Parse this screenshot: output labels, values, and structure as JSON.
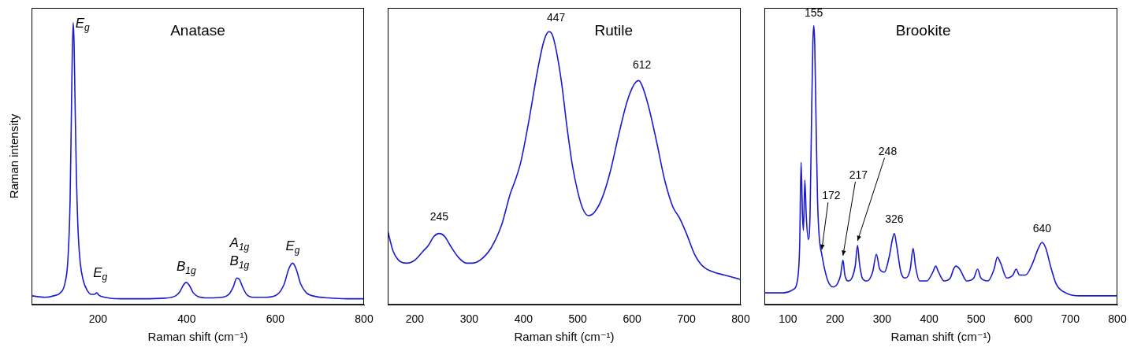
{
  "chart_data": [
    {
      "type": "line",
      "title": "Anatase",
      "x_label": "Raman shift (cm⁻¹)",
      "y_label": "Raman intensity",
      "color": "#1a1ad0",
      "grid": false,
      "tick_labels": "x",
      "xlim": [
        50,
        800
      ],
      "xticks": [
        200,
        400,
        600,
        800
      ],
      "ylim": [
        0,
        100
      ],
      "x": [
        50,
        80,
        100,
        115,
        125,
        132,
        137,
        140,
        142,
        144,
        146,
        148,
        151,
        155,
        160,
        167,
        175,
        185,
        192,
        197,
        202,
        215,
        250,
        300,
        350,
        375,
        385,
        392,
        399,
        406,
        415,
        425,
        450,
        480,
        495,
        505,
        513,
        519,
        526,
        535,
        550,
        580,
        605,
        620,
        630,
        639,
        647,
        657,
        670,
        690,
        720,
        760,
        800
      ],
      "values": [
        3,
        2.5,
        3,
        4,
        7,
        15,
        35,
        65,
        85,
        95,
        88,
        70,
        45,
        25,
        14,
        8,
        5,
        3.5,
        3.5,
        4,
        3.2,
        2.5,
        2,
        2,
        2.2,
        3,
        4.5,
        6.5,
        7.5,
        6.5,
        4,
        2.8,
        2.3,
        2.5,
        3.5,
        6,
        9,
        8.5,
        6,
        3.5,
        2.5,
        2.5,
        3.5,
        7,
        12,
        14,
        12,
        7,
        4,
        2.8,
        2.3,
        2,
        2
      ],
      "annotations": [
        {
          "text": "Eg",
          "x": 165,
          "y": 92
        },
        {
          "text": "Eg",
          "x": 205,
          "y": 8
        },
        {
          "text": "B1g",
          "x": 399,
          "y": 10
        },
        {
          "text": "A1g",
          "x": 519,
          "y": 18
        },
        {
          "text": "B1g",
          "x": 519,
          "y": 12
        },
        {
          "text": "Eg",
          "x": 639,
          "y": 17
        }
      ]
    },
    {
      "type": "line",
      "title": "Rutile",
      "x_label": "Raman shift (cm⁻¹)",
      "color": "#1a1ad0",
      "grid": false,
      "tick_labels": "x",
      "xlim": [
        150,
        800
      ],
      "xticks": [
        200,
        300,
        400,
        500,
        600,
        700,
        800
      ],
      "ylim": [
        0,
        100
      ],
      "x": [
        150,
        160,
        170,
        185,
        200,
        215,
        225,
        235,
        245,
        255,
        265,
        280,
        295,
        305,
        320,
        340,
        360,
        375,
        385,
        395,
        410,
        425,
        435,
        442,
        447,
        453,
        460,
        470,
        480,
        490,
        500,
        510,
        520,
        530,
        545,
        560,
        575,
        590,
        600,
        607,
        612,
        618,
        630,
        645,
        660,
        675,
        688,
        700,
        715,
        730,
        750,
        770,
        800
      ],
      "values": [
        25,
        18,
        15,
        14,
        15,
        18,
        20,
        23,
        24,
        23,
        20,
        16,
        14,
        14,
        15,
        19,
        27,
        37,
        42,
        48,
        62,
        78,
        87,
        91,
        92,
        91,
        86,
        75,
        60,
        47,
        38,
        32,
        30,
        31,
        36,
        45,
        57,
        68,
        73,
        75,
        75.5,
        74,
        67,
        55,
        42,
        33,
        29,
        24,
        17,
        13,
        11,
        10,
        8.5
      ],
      "annotations": [
        {
          "text": "245",
          "x": 245,
          "y": 28
        },
        {
          "text": "447",
          "x": 460,
          "y": 95
        },
        {
          "text": "612",
          "x": 618,
          "y": 79
        }
      ]
    },
    {
      "type": "line",
      "title": "Brookite",
      "x_label": "Raman shift (cm⁻¹)",
      "color": "#1a1ad0",
      "grid": false,
      "tick_labels": "x",
      "xlim": [
        50,
        800
      ],
      "xticks": [
        100,
        200,
        300,
        400,
        500,
        600,
        700,
        800
      ],
      "ylim": [
        0,
        100
      ],
      "x": [
        50,
        90,
        110,
        120,
        125,
        128,
        131,
        133,
        136,
        139,
        143,
        147,
        150,
        153,
        155,
        157,
        160,
        163,
        167,
        172,
        178,
        185,
        195,
        205,
        212,
        217,
        221,
        228,
        236,
        243,
        248,
        252,
        258,
        268,
        280,
        288,
        295,
        305,
        315,
        322,
        326,
        331,
        340,
        350,
        360,
        366,
        371,
        380,
        395,
        408,
        414,
        420,
        432,
        445,
        452,
        457,
        465,
        480,
        495,
        503,
        510,
        525,
        538,
        545,
        552,
        565,
        578,
        585,
        592,
        605,
        620,
        632,
        640,
        648,
        658,
        670,
        690,
        720,
        760,
        800
      ],
      "values": [
        4,
        4,
        5,
        8,
        20,
        48,
        30,
        25,
        42,
        30,
        22,
        30,
        60,
        88,
        94,
        88,
        60,
        35,
        22,
        17,
        12,
        8,
        6,
        7,
        10,
        15,
        10,
        8,
        9,
        13,
        20,
        14,
        9,
        8,
        11,
        17,
        12,
        11,
        16,
        22,
        24,
        20,
        11,
        9,
        12,
        19,
        13,
        8,
        8,
        11,
        13,
        11,
        8,
        9,
        12,
        13,
        12,
        8,
        9,
        12,
        9,
        8,
        12,
        16,
        14,
        9,
        10,
        12,
        10,
        10,
        14,
        19,
        21,
        19,
        13,
        7,
        4,
        3,
        3,
        3
      ],
      "annotations": [
        {
          "text": "155",
          "x": 155,
          "y": 96.5
        },
        {
          "text": "172",
          "x": 172,
          "y": 18,
          "text_x": 192,
          "text_y": 35
        },
        {
          "text": "217",
          "x": 217,
          "y": 16,
          "text_x": 250,
          "text_y": 42
        },
        {
          "text": "248",
          "x": 248,
          "y": 21,
          "text_x": 312,
          "text_y": 50
        },
        {
          "text": "326",
          "x": 326,
          "y": 27
        },
        {
          "text": "640",
          "x": 640,
          "y": 24
        }
      ]
    }
  ]
}
